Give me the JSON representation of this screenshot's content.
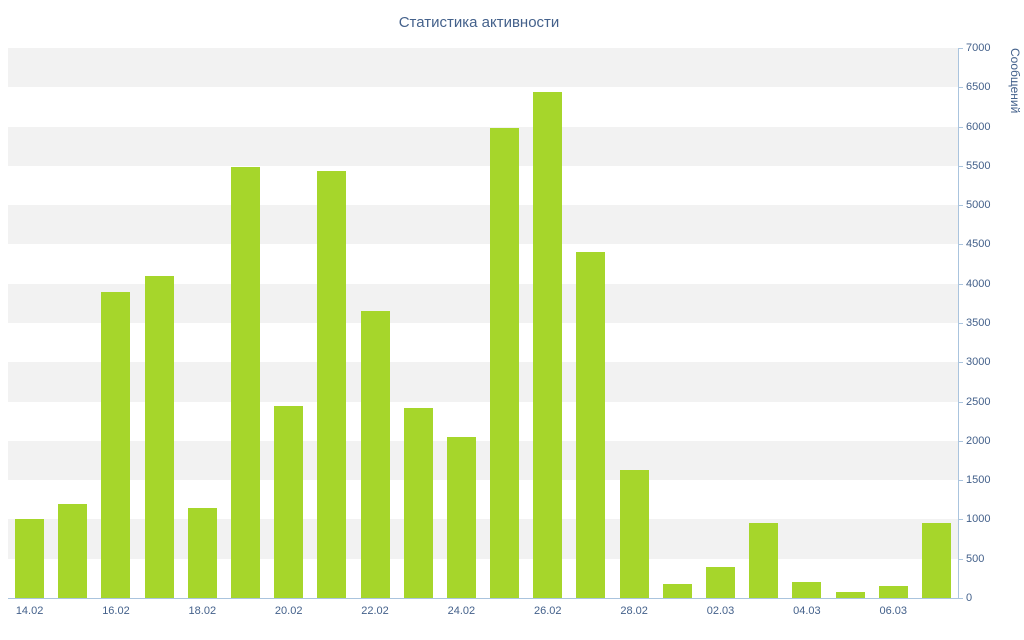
{
  "chart_data": {
    "type": "bar",
    "title": "Статистика активности",
    "xlabel": "",
    "ylabel": "Сообщений",
    "ylim": [
      0,
      7000
    ],
    "y_tick_step": 500,
    "y_ticks": [
      0,
      500,
      1000,
      1500,
      2000,
      2500,
      3000,
      3500,
      4000,
      4500,
      5000,
      5500,
      6000,
      6500,
      7000
    ],
    "categories": [
      "14.02",
      "15.02",
      "16.02",
      "17.02",
      "18.02",
      "19.02",
      "20.02",
      "21.02",
      "22.02",
      "23.02",
      "24.02",
      "25.02",
      "26.02",
      "27.02",
      "28.02",
      "01.03",
      "02.03",
      "03.03",
      "04.03",
      "05.03",
      "06.03",
      "07.03"
    ],
    "values": [
      1000,
      1200,
      3900,
      4100,
      1150,
      5480,
      2450,
      5430,
      3650,
      2420,
      2050,
      5980,
      6440,
      4400,
      1630,
      180,
      400,
      950,
      200,
      80,
      150,
      950
    ],
    "x_tick_labels": [
      "14.02",
      "16.02",
      "18.02",
      "20.02",
      "22.02",
      "24.02",
      "26.02",
      "28.02",
      "02.03",
      "04.03",
      "06.03"
    ],
    "x_tick_indices": [
      0,
      2,
      4,
      6,
      8,
      10,
      12,
      14,
      16,
      18,
      20
    ],
    "legend": "none",
    "grid": "alternating-horizontal-bands",
    "colors": {
      "bar": "#a6d62b",
      "band_a": "#f2f2f2",
      "band_b": "#ffffff",
      "axis_line": "#aac4de",
      "text": "#44618b",
      "background": "#ffffff"
    }
  }
}
